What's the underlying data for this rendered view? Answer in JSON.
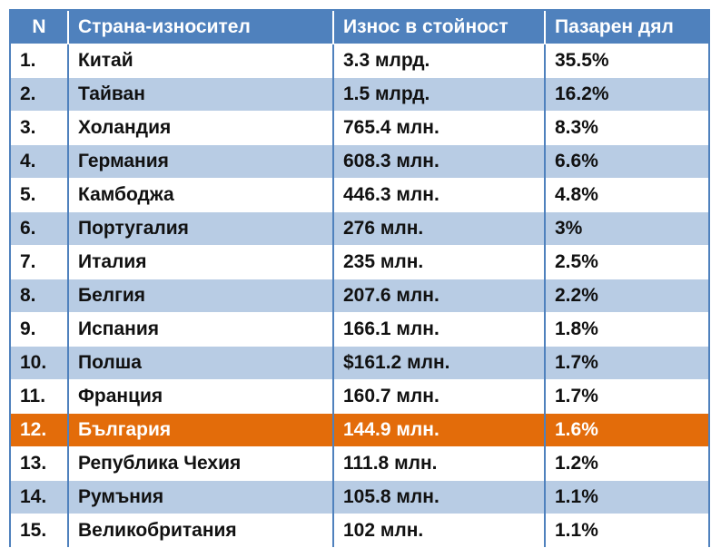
{
  "table": {
    "headers": [
      "N",
      "Страна-износител",
      "Износ в стойност",
      "Пазарен дял"
    ],
    "rows": [
      {
        "n": "1.",
        "country": "Китай",
        "value": "3.3 млрд.",
        "share": "35.5%"
      },
      {
        "n": "2.",
        "country": "Тайван",
        "value": "1.5 млрд.",
        "share": "16.2%"
      },
      {
        "n": "3.",
        "country": "Холандия",
        "value": "765.4 млн.",
        "share": "8.3%"
      },
      {
        "n": "4.",
        "country": "Германия",
        "value": "608.3 млн.",
        "share": "6.6%"
      },
      {
        "n": "5.",
        "country": "Камбоджа",
        "value": "446.3 млн.",
        "share": "4.8%"
      },
      {
        "n": "6.",
        "country": "Португалия",
        "value": "276 млн.",
        "share": "3%"
      },
      {
        "n": "7.",
        "country": "Италия",
        "value": "235 млн.",
        "share": "2.5%"
      },
      {
        "n": "8.",
        "country": "Белгия",
        "value": "207.6 млн.",
        "share": "2.2%"
      },
      {
        "n": "9.",
        "country": "Испания",
        "value": "166.1 млн.",
        "share": "1.8%"
      },
      {
        "n": "10.",
        "country": "Полша",
        "value": "$161.2 млн.",
        "share": "1.7%"
      },
      {
        "n": "11.",
        "country": "Франция",
        "value": "160.7 млн.",
        "share": "1.7%"
      },
      {
        "n": "12.",
        "country": "България",
        "value": "144.9 млн.",
        "share": "1.6%",
        "highlight": true
      },
      {
        "n": "13.",
        "country": "Република Чехия",
        "value": "111.8 млн.",
        "share": "1.2%"
      },
      {
        "n": "14.",
        "country": "Румъния",
        "value": "105.8 млн.",
        "share": "1.1%"
      },
      {
        "n": "15.",
        "country": "Великобритания",
        "value": "102 млн.",
        "share": "1.1%"
      }
    ]
  },
  "colors": {
    "header": "#4f81bd",
    "band": "#b8cce4",
    "highlight": "#e36c0a"
  }
}
